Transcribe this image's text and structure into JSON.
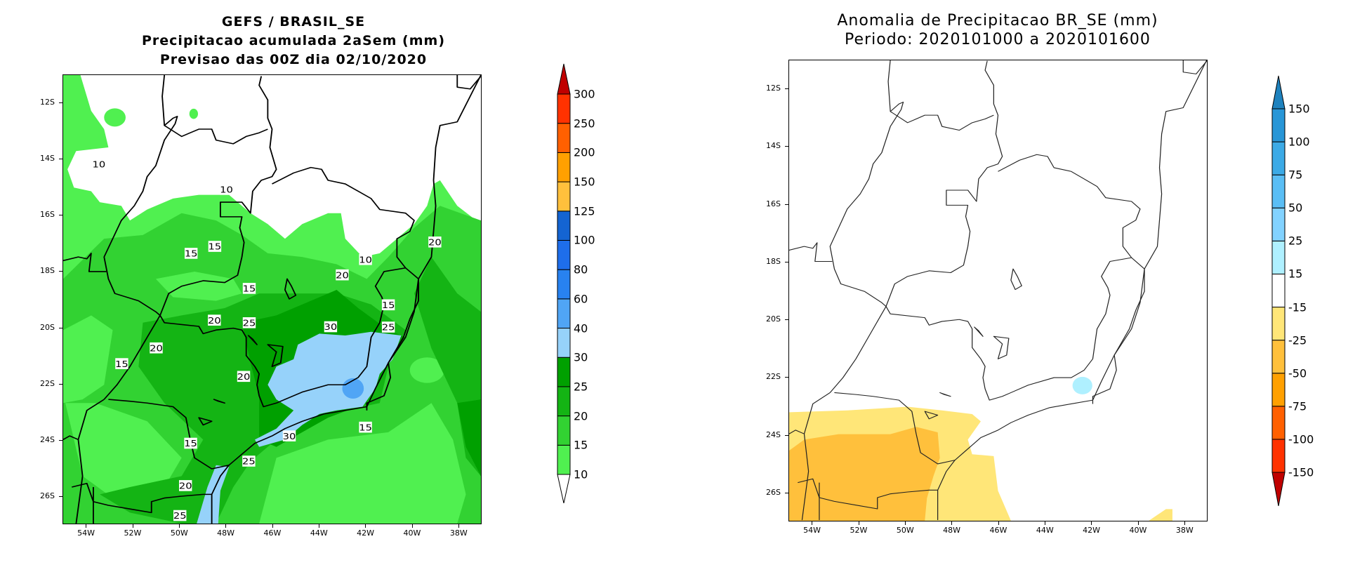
{
  "chart_data": [
    {
      "type": "heatmap",
      "subtype": "filled-contour map",
      "title": [
        "GEFS / BRASIL_SE",
        "Precipitacao acumulada 2aSem (mm)",
        "Previsao das 00Z dia 02/10/2020"
      ],
      "xlabel": "",
      "ylabel": "",
      "xlim": [
        -55,
        -37
      ],
      "ylim": [
        -27,
        -11
      ],
      "x_ticks": [
        "54W",
        "52W",
        "50W",
        "48W",
        "46W",
        "44W",
        "42W",
        "40W",
        "38W"
      ],
      "y_ticks": [
        "12S",
        "14S",
        "16S",
        "18S",
        "20S",
        "22S",
        "24S",
        "26S"
      ],
      "colorbar": {
        "labels": [
          "10",
          "15",
          "20",
          "25",
          "30",
          "40",
          "60",
          "80",
          "100",
          "125",
          "150",
          "200",
          "250",
          "300"
        ],
        "colors": [
          "#50F050",
          "#32D232",
          "#14B414",
          "#00A000",
          "#96D2FA",
          "#50A5F5",
          "#2882F0",
          "#1E6EEB",
          "#1464D2",
          "#FFC03C",
          "#FFA000",
          "#FF6000",
          "#FF3200"
        ],
        "under_color": "#FFFFFF",
        "over_color": "#C00000"
      },
      "contour_labels": [
        "10",
        "10",
        "15",
        "15",
        "10",
        "20",
        "15",
        "20",
        "15",
        "20",
        "25",
        "30",
        "25",
        "20",
        "15",
        "20",
        "15",
        "15",
        "30",
        "25",
        "20",
        "25"
      ]
    },
    {
      "type": "heatmap",
      "subtype": "filled-contour map",
      "title": [
        "Anomalia de Precipitacao BR_SE (mm)",
        "Periodo: 2020101000 a 2020101600"
      ],
      "xlabel": "",
      "ylabel": "",
      "xlim": [
        -55,
        -37
      ],
      "ylim": [
        -27,
        -11
      ],
      "x_ticks": [
        "54W",
        "52W",
        "50W",
        "48W",
        "46W",
        "44W",
        "42W",
        "40W",
        "38W"
      ],
      "y_ticks": [
        "12S",
        "14S",
        "16S",
        "18S",
        "20S",
        "22S",
        "24S",
        "26S"
      ],
      "colorbar": {
        "labels": [
          "-150",
          "-100",
          "-75",
          "-50",
          "-25",
          "-15",
          "15",
          "25",
          "50",
          "75",
          "100",
          "150"
        ],
        "colors": [
          "#FF3200",
          "#FF6000",
          "#FFA000",
          "#FFC03C",
          "#FFE678",
          "#FFFFFF",
          "#AFF0FF",
          "#82D2FF",
          "#5ABEF5",
          "#3CAAE6",
          "#2896D7"
        ],
        "under_color": "#C00000",
        "over_color": "#1E82BE"
      }
    }
  ]
}
